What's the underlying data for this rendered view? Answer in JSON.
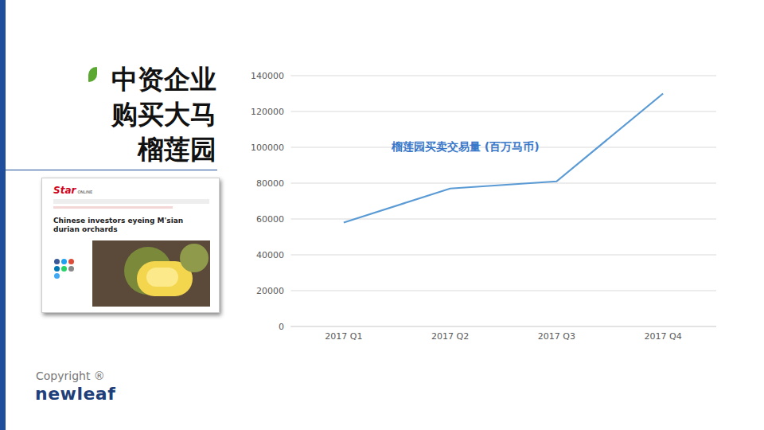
{
  "chart_data": {
    "type": "line",
    "annotation": "榴莲园买卖交易量 (百万马币)",
    "categories": [
      "2017 Q1",
      "2017 Q2",
      "2017 Q3",
      "2017 Q4"
    ],
    "values": [
      58000,
      77000,
      81000,
      130000
    ],
    "color": "#5b9bd5",
    "ylim": [
      0,
      140000
    ],
    "yticks": [
      0,
      20000,
      40000,
      60000,
      80000,
      100000,
      120000,
      140000
    ],
    "grid": true
  },
  "slide": {
    "title": [
      "中资企业",
      "购买大马",
      "榴莲园"
    ],
    "article": {
      "masthead": "Star",
      "masthead_sub": "ONLINE",
      "headline": "Chinese investors eyeing M'sian durian orchards"
    },
    "footer": {
      "copyright": "Copyright ®",
      "logo": "newleaf"
    }
  }
}
